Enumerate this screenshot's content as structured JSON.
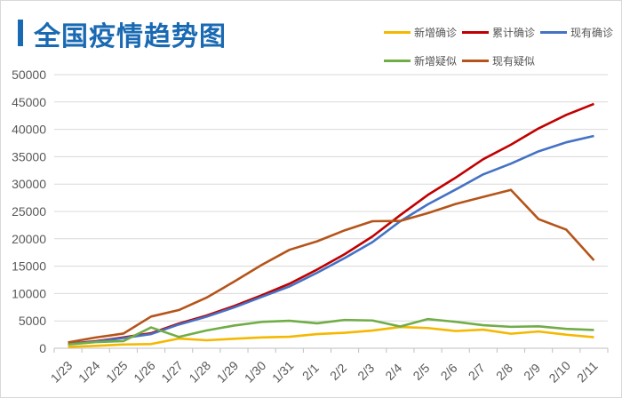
{
  "chart_data": {
    "type": "line",
    "title": "全国疫情趋势图",
    "xlabel": "",
    "ylabel": "",
    "ylim": [
      0,
      50000
    ],
    "yticks": [
      0,
      5000,
      10000,
      15000,
      20000,
      25000,
      30000,
      35000,
      40000,
      45000,
      50000
    ],
    "grid": true,
    "legend_placement": "top-right",
    "categories": [
      "1/23",
      "1/24",
      "1/25",
      "1/26",
      "1/27",
      "1/28",
      "1/29",
      "1/30",
      "1/31",
      "2/1",
      "2/2",
      "2/3",
      "2/4",
      "2/5",
      "2/6",
      "2/7",
      "2/8",
      "2/9",
      "2/10",
      "2/11"
    ],
    "series": [
      {
        "name": "新增确诊",
        "color": "#f5b800",
        "values": [
          259,
          444,
          688,
          769,
          1771,
          1459,
          1737,
          1982,
          2102,
          2590,
          2829,
          3235,
          3887,
          3694,
          3143,
          3399,
          2656,
          3062,
          2478,
          2015
        ]
      },
      {
        "name": "累计确诊",
        "color": "#c00000",
        "values": [
          830,
          1287,
          1975,
          2744,
          4515,
          5974,
          7711,
          9692,
          11791,
          14380,
          17205,
          20438,
          24324,
          28018,
          31161,
          34546,
          37198,
          40171,
          42638,
          44653
        ]
      },
      {
        "name": "现有确诊",
        "color": "#4472c4",
        "values": [
          790,
          1220,
          1870,
          2590,
          4330,
          5760,
          7460,
          9380,
          11290,
          13800,
          16500,
          19400,
          23200,
          26300,
          28990,
          31770,
          33740,
          35980,
          37630,
          38800
        ]
      },
      {
        "name": "新增疑似",
        "color": "#70ad47",
        "values": [
          700,
          1118,
          1309,
          3806,
          2077,
          3248,
          4148,
          4812,
          5019,
          4562,
          5173,
          5072,
          3971,
          5328,
          4833,
          4214,
          3916,
          4008,
          3536,
          3342
        ]
      },
      {
        "name": "现有疑似",
        "color": "#b5541a",
        "values": [
          1072,
          1965,
          2684,
          5794,
          6973,
          9239,
          12167,
          15238,
          17988,
          19544,
          21558,
          23214,
          23260,
          24702,
          26359,
          27657,
          28942,
          23589,
          21675,
          16067
        ]
      }
    ]
  }
}
